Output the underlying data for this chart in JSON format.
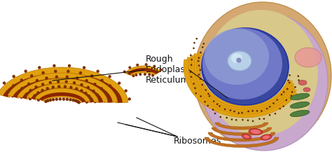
{
  "background_color": "#ffffff",
  "label_rough_er": "Rough\nEndoplasmic\nReticulum",
  "label_ribosomes": "Ribosomes",
  "label_font_size": 9,
  "fig_width": 4.74,
  "fig_height": 2.37,
  "dpi": 100,
  "gold_light": "#F0B830",
  "gold_mid": "#E0A010",
  "gold_dark": "#C07808",
  "brown_lumen": "#8B2500",
  "rib_color": "#7B3000",
  "cell_outer": "#D4B8D0",
  "cell_cytoplasm": "#E8C870",
  "nucleus_blue": "#5060B8",
  "nucleus_dark": "#3848A0",
  "nucleolus_light": "#90B8D8",
  "annotation_color": "#111111"
}
